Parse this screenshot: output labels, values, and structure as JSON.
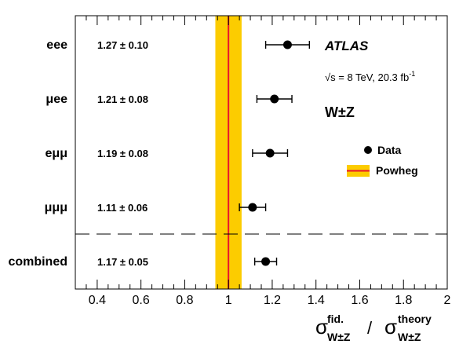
{
  "chart_data": {
    "type": "scatter",
    "orientation": "horizontal",
    "categories": [
      "eee",
      "μee",
      "eμμ",
      "μμμ",
      "combined"
    ],
    "values": [
      1.27,
      1.21,
      1.19,
      1.11,
      1.17
    ],
    "errors": [
      0.1,
      0.08,
      0.08,
      0.06,
      0.05
    ],
    "value_labels": [
      "1.27 ± 0.10",
      "1.21 ± 0.08",
      "1.19 ± 0.08",
      "1.11 ± 0.06",
      "1.17 ± 0.05"
    ],
    "xlim": [
      0.3,
      2.0
    ],
    "xticks": [
      0.4,
      0.6,
      0.8,
      1.0,
      1.2,
      1.4,
      1.6,
      1.8,
      2.0
    ],
    "xtick_labels": [
      "0.4",
      "0.6",
      "0.8",
      "1",
      "1.2",
      "1.4",
      "1.6",
      "1.8",
      "2"
    ],
    "xlabel_parts": {
      "sigma": "σ",
      "num_sup": "fid.",
      "num_sub": "W±Z",
      "slash": "/",
      "den_sup": "theory",
      "den_sub": "W±Z"
    },
    "reference": {
      "value": 1.0,
      "band": [
        0.94,
        1.06
      ],
      "band_color": "#fccc00",
      "line_color": "#e8142d"
    },
    "separator_after_index": 3,
    "annotations": {
      "experiment": "ATLAS",
      "energy_prefix": "√s = 8 TeV, 20.3 fb",
      "energy_exponent": "-1",
      "process": "W±Z"
    },
    "legend": {
      "position": "right",
      "entries": [
        {
          "label": "Data",
          "marker": "point"
        },
        {
          "label": "Powheg",
          "marker": "band-line"
        }
      ]
    },
    "marker_color": "#000000",
    "grid": false
  }
}
